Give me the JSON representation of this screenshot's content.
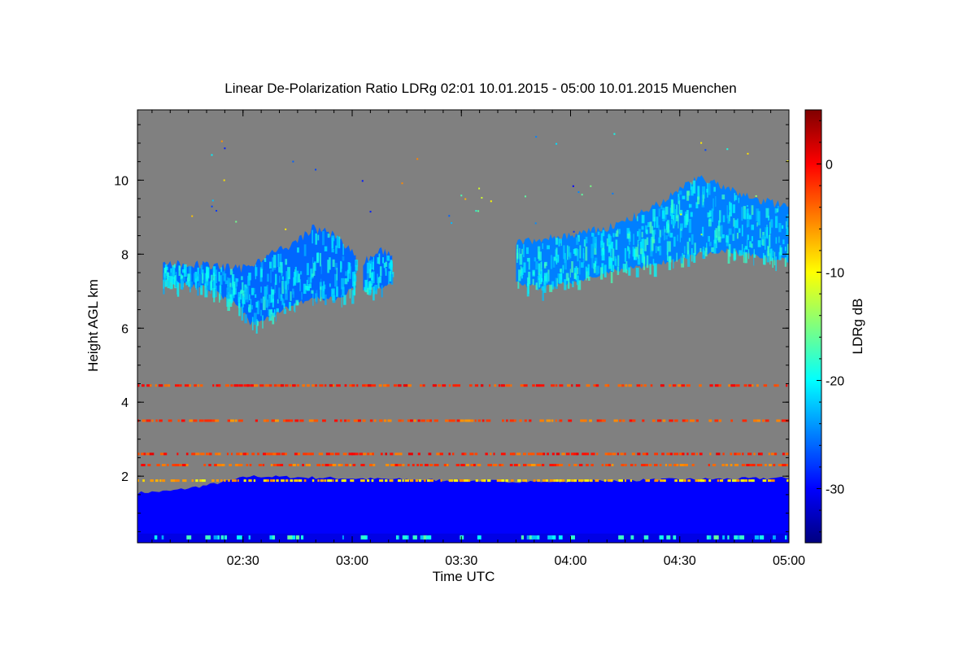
{
  "chart_data": {
    "type": "heatmap",
    "title": "Linear De-Polarization Ratio LDRg   02:01 10.01.2015 - 05:00 10.01.2015 Muenchen",
    "xlabel": "Time UTC",
    "ylabel": "Height AGL km",
    "colorbar_label": "LDRg dB",
    "x_range_minutes_utc": [
      121,
      300
    ],
    "y_range_km": [
      0.2,
      11.9
    ],
    "x_ticks": [
      {
        "value": 150,
        "label": "02:30"
      },
      {
        "value": 180,
        "label": "03:00"
      },
      {
        "value": 210,
        "label": "03:30"
      },
      {
        "value": 240,
        "label": "04:00"
      },
      {
        "value": 270,
        "label": "04:30"
      },
      {
        "value": 300,
        "label": "05:00"
      }
    ],
    "y_ticks": [
      {
        "value": 2,
        "label": "2"
      },
      {
        "value": 4,
        "label": "4"
      },
      {
        "value": 6,
        "label": "6"
      },
      {
        "value": 8,
        "label": "8"
      },
      {
        "value": 10,
        "label": "10"
      }
    ],
    "colorbar_range_db": [
      -35,
      5
    ],
    "colorbar_ticks": [
      {
        "value": 0,
        "label": "0"
      },
      {
        "value": -10,
        "label": "-10"
      },
      {
        "value": -20,
        "label": "-20"
      },
      {
        "value": -30,
        "label": "-30"
      }
    ],
    "colormap": [
      "#00007f",
      "#0000ff",
      "#007fff",
      "#00ffff",
      "#7fff7f",
      "#ffff00",
      "#ff7f00",
      "#ff0000",
      "#7f0000"
    ],
    "no_data_color": "#808080",
    "features": {
      "boundary_layer": {
        "ldr_db": -30,
        "top_km": [
          [
            121,
            1.55
          ],
          [
            130,
            1.6
          ],
          [
            140,
            1.75
          ],
          [
            152,
            2.0
          ],
          [
            175,
            1.95
          ],
          [
            200,
            1.9
          ],
          [
            230,
            1.85
          ],
          [
            260,
            1.9
          ],
          [
            300,
            1.95
          ]
        ]
      },
      "noise_lines": [
        {
          "height_km": 4.45,
          "ldr_db": -2
        },
        {
          "height_km": 3.5,
          "ldr_db": -3
        },
        {
          "height_km": 2.6,
          "ldr_db": -2
        },
        {
          "height_km": 2.3,
          "ldr_db": -3
        },
        {
          "height_km": 1.88,
          "ldr_db": -8
        }
      ],
      "cirrus_layers": [
        {
          "ldr_db": -26,
          "segments": [
            {
              "t": 128,
              "bottom": 7.3,
              "top": 7.75
            },
            {
              "t": 140,
              "bottom": 7.1,
              "top": 7.7
            },
            {
              "t": 149,
              "bottom": 6.6,
              "top": 7.6
            },
            {
              "t": 152,
              "bottom": 6.1,
              "top": 7.7
            },
            {
              "t": 157,
              "bottom": 6.3,
              "top": 8.0
            },
            {
              "t": 163,
              "bottom": 6.6,
              "top": 8.2
            },
            {
              "t": 169,
              "bottom": 6.8,
              "top": 8.7
            },
            {
              "t": 176,
              "bottom": 6.8,
              "top": 8.5
            },
            {
              "t": 181,
              "bottom": 7.1,
              "top": 7.9
            }
          ]
        },
        {
          "ldr_db": -26,
          "segments": [
            {
              "t": 183,
              "bottom": 7.0,
              "top": 7.8
            },
            {
              "t": 188,
              "bottom": 7.1,
              "top": 8.1
            },
            {
              "t": 191,
              "bottom": 7.2,
              "top": 7.9
            }
          ]
        },
        {
          "ldr_db": -25,
          "segments": [
            {
              "t": 225,
              "bottom": 7.2,
              "top": 8.3
            },
            {
              "t": 232,
              "bottom": 7.1,
              "top": 8.4
            },
            {
              "t": 240,
              "bottom": 7.2,
              "top": 8.5
            },
            {
              "t": 250,
              "bottom": 7.5,
              "top": 8.7
            },
            {
              "t": 262,
              "bottom": 7.7,
              "top": 9.2
            },
            {
              "t": 275,
              "bottom": 8.0,
              "top": 10.1
            },
            {
              "t": 282,
              "bottom": 8.1,
              "top": 9.8
            },
            {
              "t": 290,
              "bottom": 8.0,
              "top": 9.5
            },
            {
              "t": 300,
              "bottom": 7.8,
              "top": 9.3
            }
          ]
        }
      ]
    }
  }
}
